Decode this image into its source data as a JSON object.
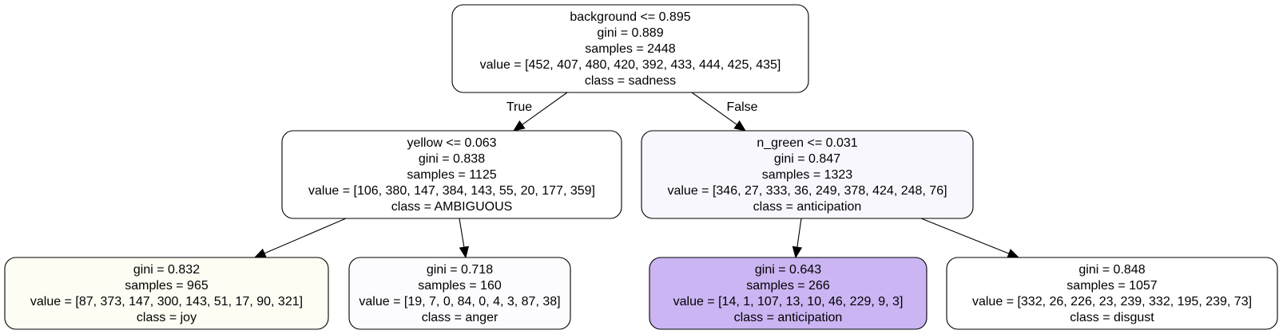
{
  "tree": {
    "nodes": [
      {
        "id": "n0",
        "lines": [
          "background <= 0.895",
          "gini = 0.889",
          "samples = 2448",
          "value = [452, 407, 480, 420, 392, 433, 444, 425, 435]",
          "class = sadness"
        ],
        "fill": "#ffffff"
      },
      {
        "id": "n1",
        "lines": [
          "yellow <= 0.063",
          "gini = 0.838",
          "samples = 1125",
          "value = [106, 380, 147, 384, 143, 55, 20, 177, 359]",
          "class = AMBIGUOUS"
        ],
        "fill": "#ffffff"
      },
      {
        "id": "n2",
        "lines": [
          "n_green <= 0.031",
          "gini = 0.847",
          "samples = 1323",
          "value = [346, 27, 333, 36, 249, 378, 424, 248, 76]",
          "class = anticipation"
        ],
        "fill": "#f9f7fe"
      },
      {
        "id": "n3",
        "lines": [
          "gini = 0.832",
          "samples = 965",
          "value = [87, 373, 147, 300, 143, 51, 17, 90, 321]",
          "class = joy"
        ],
        "fill": "#fdfdf4"
      },
      {
        "id": "n4",
        "lines": [
          "gini = 0.718",
          "samples = 160",
          "value = [19, 7, 0, 84, 0, 4, 3, 87, 38]",
          "class = anger"
        ],
        "fill": "#fcfbfe"
      },
      {
        "id": "n5",
        "lines": [
          "gini = 0.643",
          "samples = 266",
          "value = [14, 1, 107, 13, 10, 46, 229, 9, 3]",
          "class = anticipation"
        ],
        "fill": "#cbb5f3"
      },
      {
        "id": "n6",
        "lines": [
          "gini = 0.848",
          "samples = 1057",
          "value = [332, 26, 226, 23, 239, 332, 195, 239, 73]",
          "class = disgust"
        ],
        "fill": "#ffffff"
      }
    ],
    "edges": [
      {
        "from": "n0",
        "to": "n1",
        "label": "True"
      },
      {
        "from": "n0",
        "to": "n2",
        "label": "False"
      },
      {
        "from": "n1",
        "to": "n3",
        "label": ""
      },
      {
        "from": "n1",
        "to": "n4",
        "label": ""
      },
      {
        "from": "n2",
        "to": "n5",
        "label": ""
      },
      {
        "from": "n2",
        "to": "n6",
        "label": ""
      }
    ]
  }
}
